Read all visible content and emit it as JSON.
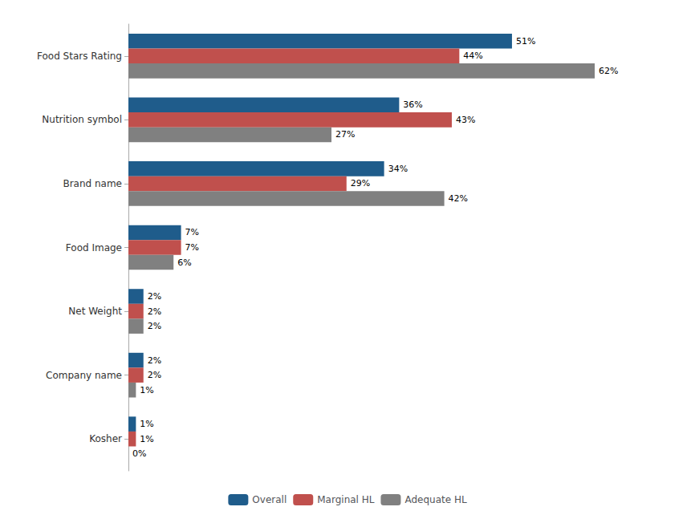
{
  "chart_data": {
    "type": "bar",
    "orientation": "horizontal",
    "categories": [
      "Food Stars Rating",
      "Nutrition symbol",
      "Brand name",
      "Food Image",
      "Net Weight",
      "Company name",
      "Kosher"
    ],
    "series": [
      {
        "name": "Overall",
        "color": "#1F5C8B",
        "values": [
          51,
          36,
          34,
          7,
          2,
          2,
          1
        ],
        "value_labels": [
          "51%",
          "36%",
          "34%",
          "7%",
          "2%",
          "2%",
          "1%"
        ]
      },
      {
        "name": "Marginal HL",
        "color": "#C0504D",
        "values": [
          44,
          43,
          29,
          7,
          2,
          2,
          1
        ],
        "value_labels": [
          "44%",
          "43%",
          "29%",
          "7%",
          "2%",
          "2%",
          "1%"
        ]
      },
      {
        "name": "Adequate HL",
        "color": "#808080",
        "values": [
          62,
          27,
          42,
          6,
          2,
          1,
          0
        ],
        "value_labels": [
          "62%",
          "27%",
          "42%",
          "6%",
          "2%",
          "1%",
          "0%"
        ]
      }
    ],
    "xlim": [
      0,
      70
    ],
    "data_labels": true,
    "tick_labels": "y",
    "grid": false,
    "legend": "bottom"
  }
}
